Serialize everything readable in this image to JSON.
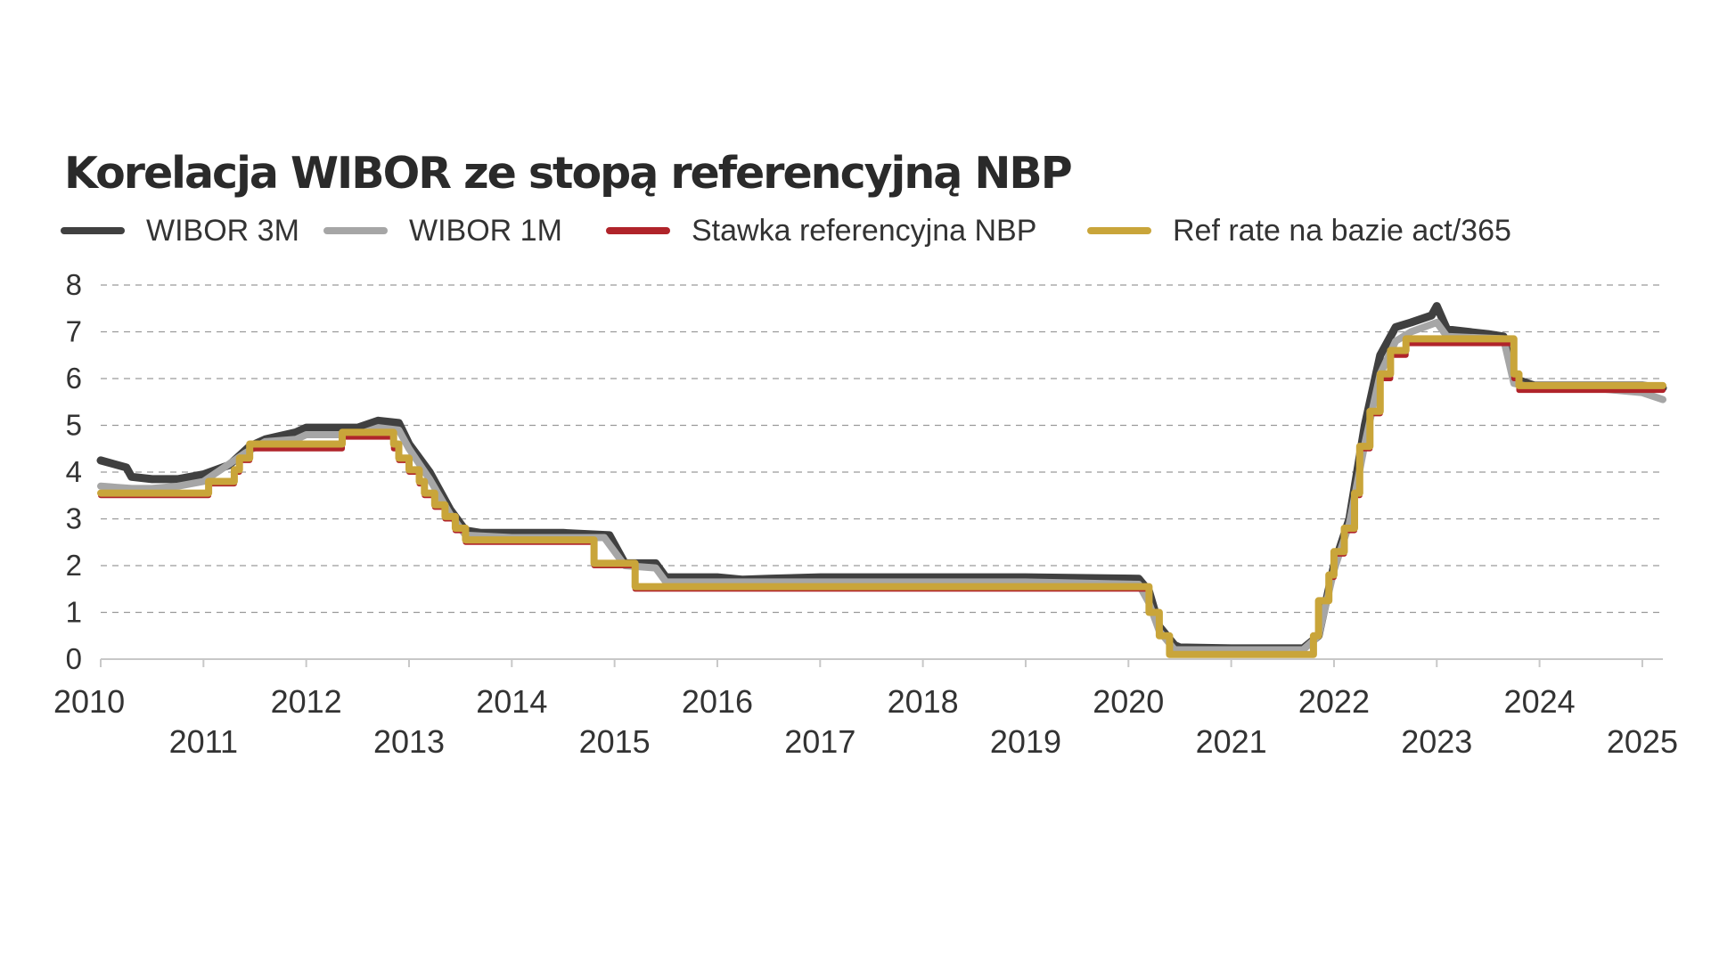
{
  "chart_data": {
    "type": "line",
    "title": "Korelacja WIBOR ze stopą referencyjną NBP",
    "xlabel": "",
    "ylabel": "",
    "ylim": [
      0,
      8
    ],
    "xlim": [
      2010.0,
      2025.2
    ],
    "yticks": [
      0,
      1,
      2,
      3,
      4,
      5,
      6,
      7,
      8
    ],
    "xticks": [
      {
        "value": 2010,
        "label": "2010"
      },
      {
        "value": 2011,
        "label": "2011"
      },
      {
        "value": 2012,
        "label": "2012"
      },
      {
        "value": 2013,
        "label": "2013"
      },
      {
        "value": 2014,
        "label": "2014"
      },
      {
        "value": 2015,
        "label": "2015"
      },
      {
        "value": 2016,
        "label": "2016"
      },
      {
        "value": 2017,
        "label": "2017"
      },
      {
        "value": 2018,
        "label": "2018"
      },
      {
        "value": 2019,
        "label": "2019"
      },
      {
        "value": 2020,
        "label": "2020"
      },
      {
        "value": 2021,
        "label": "2021"
      },
      {
        "value": 2022,
        "label": "2022"
      },
      {
        "value": 2023,
        "label": "2023"
      },
      {
        "value": 2024,
        "label": "2024"
      },
      {
        "value": 2025,
        "label": "2025"
      }
    ],
    "grid": "horizontal-dashed",
    "legend_position": "top",
    "series": [
      {
        "name": "WIBOR 3M",
        "color": "#404040",
        "step": false,
        "points": [
          [
            2010.0,
            4.25
          ],
          [
            2010.25,
            4.1
          ],
          [
            2010.3,
            3.9
          ],
          [
            2010.5,
            3.85
          ],
          [
            2010.75,
            3.85
          ],
          [
            2011.0,
            3.95
          ],
          [
            2011.25,
            4.15
          ],
          [
            2011.45,
            4.55
          ],
          [
            2011.6,
            4.7
          ],
          [
            2011.9,
            4.85
          ],
          [
            2012.0,
            4.95
          ],
          [
            2012.5,
            4.95
          ],
          [
            2012.7,
            5.1
          ],
          [
            2012.9,
            5.05
          ],
          [
            2013.0,
            4.6
          ],
          [
            2013.2,
            4.0
          ],
          [
            2013.4,
            3.2
          ],
          [
            2013.55,
            2.75
          ],
          [
            2013.7,
            2.7
          ],
          [
            2014.0,
            2.7
          ],
          [
            2014.5,
            2.7
          ],
          [
            2014.95,
            2.65
          ],
          [
            2015.1,
            2.05
          ],
          [
            2015.4,
            2.05
          ],
          [
            2015.5,
            1.75
          ],
          [
            2016.0,
            1.75
          ],
          [
            2016.25,
            1.7
          ],
          [
            2016.5,
            1.72
          ],
          [
            2017.0,
            1.75
          ],
          [
            2018.0,
            1.75
          ],
          [
            2019.0,
            1.75
          ],
          [
            2020.1,
            1.72
          ],
          [
            2020.2,
            1.45
          ],
          [
            2020.3,
            0.7
          ],
          [
            2020.45,
            0.3
          ],
          [
            2020.5,
            0.25
          ],
          [
            2021.0,
            0.23
          ],
          [
            2021.7,
            0.23
          ],
          [
            2021.85,
            0.5
          ],
          [
            2022.0,
            2.0
          ],
          [
            2022.15,
            3.0
          ],
          [
            2022.3,
            5.0
          ],
          [
            2022.45,
            6.5
          ],
          [
            2022.6,
            7.1
          ],
          [
            2022.75,
            7.2
          ],
          [
            2022.95,
            7.35
          ],
          [
            2023.0,
            7.55
          ],
          [
            2023.1,
            7.05
          ],
          [
            2023.5,
            6.95
          ],
          [
            2023.65,
            6.9
          ],
          [
            2023.75,
            6.0
          ],
          [
            2023.95,
            5.85
          ],
          [
            2024.2,
            5.85
          ],
          [
            2024.6,
            5.85
          ],
          [
            2025.0,
            5.85
          ],
          [
            2025.2,
            5.8
          ]
        ]
      },
      {
        "name": "WIBOR 1M",
        "color": "#a6a6a6",
        "step": false,
        "points": [
          [
            2010.0,
            3.7
          ],
          [
            2010.3,
            3.65
          ],
          [
            2010.5,
            3.65
          ],
          [
            2010.75,
            3.7
          ],
          [
            2011.0,
            3.8
          ],
          [
            2011.2,
            4.1
          ],
          [
            2011.4,
            4.4
          ],
          [
            2011.6,
            4.65
          ],
          [
            2011.9,
            4.7
          ],
          [
            2012.0,
            4.8
          ],
          [
            2012.5,
            4.8
          ],
          [
            2012.7,
            4.95
          ],
          [
            2012.9,
            4.9
          ],
          [
            2013.0,
            4.5
          ],
          [
            2013.2,
            3.85
          ],
          [
            2013.4,
            3.1
          ],
          [
            2013.55,
            2.65
          ],
          [
            2014.0,
            2.6
          ],
          [
            2014.9,
            2.6
          ],
          [
            2015.1,
            2.0
          ],
          [
            2015.4,
            1.95
          ],
          [
            2015.5,
            1.65
          ],
          [
            2016.0,
            1.65
          ],
          [
            2017.0,
            1.65
          ],
          [
            2018.0,
            1.65
          ],
          [
            2019.0,
            1.65
          ],
          [
            2020.1,
            1.6
          ],
          [
            2020.2,
            1.2
          ],
          [
            2020.3,
            0.6
          ],
          [
            2020.45,
            0.2
          ],
          [
            2021.0,
            0.2
          ],
          [
            2021.7,
            0.2
          ],
          [
            2021.85,
            0.5
          ],
          [
            2022.0,
            1.9
          ],
          [
            2022.15,
            2.9
          ],
          [
            2022.3,
            4.6
          ],
          [
            2022.45,
            6.1
          ],
          [
            2022.6,
            6.8
          ],
          [
            2022.75,
            7.0
          ],
          [
            2023.0,
            7.2
          ],
          [
            2023.1,
            6.9
          ],
          [
            2023.65,
            6.85
          ],
          [
            2023.75,
            5.9
          ],
          [
            2023.95,
            5.8
          ],
          [
            2024.5,
            5.8
          ],
          [
            2025.0,
            5.7
          ],
          [
            2025.2,
            5.55
          ]
        ]
      },
      {
        "name": "Stawka referencyjna NBP",
        "color": "#b0242a",
        "step": true,
        "points": [
          [
            2010.0,
            3.5
          ],
          [
            2011.05,
            3.75
          ],
          [
            2011.3,
            4.0
          ],
          [
            2011.35,
            4.25
          ],
          [
            2011.45,
            4.5
          ],
          [
            2012.35,
            4.75
          ],
          [
            2012.85,
            4.5
          ],
          [
            2012.9,
            4.25
          ],
          [
            2013.0,
            4.0
          ],
          [
            2013.1,
            3.75
          ],
          [
            2013.15,
            3.5
          ],
          [
            2013.25,
            3.25
          ],
          [
            2013.35,
            3.0
          ],
          [
            2013.45,
            2.75
          ],
          [
            2013.55,
            2.5
          ],
          [
            2014.8,
            2.0
          ],
          [
            2015.2,
            1.5
          ],
          [
            2020.2,
            1.0
          ],
          [
            2020.3,
            0.5
          ],
          [
            2020.4,
            0.1
          ],
          [
            2021.8,
            0.5
          ],
          [
            2021.85,
            1.25
          ],
          [
            2021.95,
            1.75
          ],
          [
            2022.0,
            2.25
          ],
          [
            2022.1,
            2.75
          ],
          [
            2022.2,
            3.5
          ],
          [
            2022.25,
            4.5
          ],
          [
            2022.35,
            5.25
          ],
          [
            2022.45,
            6.0
          ],
          [
            2022.55,
            6.5
          ],
          [
            2022.7,
            6.75
          ],
          [
            2023.75,
            6.0
          ],
          [
            2023.8,
            5.75
          ],
          [
            2025.2,
            5.75
          ]
        ]
      },
      {
        "name": "Ref rate na bazie act/365",
        "color": "#c9a53a",
        "step": true,
        "points": [
          [
            2010.0,
            3.55
          ],
          [
            2011.05,
            3.8
          ],
          [
            2011.3,
            4.05
          ],
          [
            2011.35,
            4.3
          ],
          [
            2011.45,
            4.6
          ],
          [
            2012.35,
            4.85
          ],
          [
            2012.85,
            4.6
          ],
          [
            2012.9,
            4.3
          ],
          [
            2013.0,
            4.05
          ],
          [
            2013.1,
            3.8
          ],
          [
            2013.15,
            3.55
          ],
          [
            2013.25,
            3.3
          ],
          [
            2013.35,
            3.05
          ],
          [
            2013.45,
            2.8
          ],
          [
            2013.55,
            2.55
          ],
          [
            2014.8,
            2.05
          ],
          [
            2015.2,
            1.55
          ],
          [
            2020.2,
            1.0
          ],
          [
            2020.3,
            0.5
          ],
          [
            2020.4,
            0.1
          ],
          [
            2021.8,
            0.5
          ],
          [
            2021.85,
            1.25
          ],
          [
            2021.95,
            1.8
          ],
          [
            2022.0,
            2.3
          ],
          [
            2022.1,
            2.8
          ],
          [
            2022.2,
            3.55
          ],
          [
            2022.25,
            4.55
          ],
          [
            2022.35,
            5.3
          ],
          [
            2022.45,
            6.1
          ],
          [
            2022.55,
            6.6
          ],
          [
            2022.7,
            6.85
          ],
          [
            2023.75,
            6.1
          ],
          [
            2023.8,
            5.85
          ],
          [
            2025.2,
            5.85
          ]
        ]
      }
    ]
  }
}
